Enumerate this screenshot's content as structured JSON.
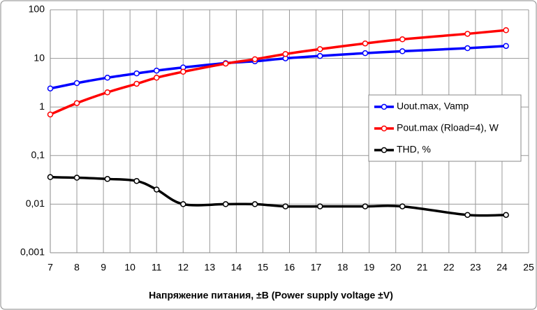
{
  "chart_data": {
    "type": "line",
    "x_label": "Напряжение питания, ±В  (Power supply voltage ±V)",
    "x": [
      7,
      8,
      9.15,
      10.25,
      11,
      12,
      13.6,
      14.7,
      15.85,
      17.15,
      18.85,
      20.25,
      22.7,
      24.15
    ],
    "series": [
      {
        "name": "Uout.max, Vamp",
        "color": "#0000ff",
        "values": [
          2.4,
          3.1,
          4,
          4.9,
          5.6,
          6.5,
          8,
          8.7,
          10,
          11.2,
          12.8,
          14,
          16.2,
          18
        ]
      },
      {
        "name": "Pout.max (Rload=4), W",
        "color": "#ff0000",
        "values": [
          0.7,
          1.2,
          2,
          3,
          4,
          5.3,
          7.8,
          9.6,
          12.3,
          15.5,
          20.3,
          24.7,
          32,
          38
        ]
      },
      {
        "name": "THD, %",
        "color": "#000000",
        "values": [
          0.036,
          0.035,
          0.033,
          0.03,
          0.02,
          0.01,
          0.01,
          0.01,
          0.009,
          0.009,
          0.009,
          0.009,
          0.006,
          0.006
        ]
      }
    ],
    "xlim": [
      7,
      25
    ],
    "xticks": [
      7,
      8,
      9,
      10,
      11,
      12,
      13,
      14,
      15,
      16,
      17,
      18,
      19,
      20,
      21,
      22,
      23,
      24,
      25
    ],
    "ylim": [
      0.001,
      100
    ],
    "log_y": true,
    "yticks": [
      {
        "value": 0.001,
        "label": "0,001"
      },
      {
        "value": 0.01,
        "label": "0,01"
      },
      {
        "value": 0.1,
        "label": "0,1"
      },
      1,
      10,
      100
    ],
    "grid": true,
    "legend": "right"
  }
}
